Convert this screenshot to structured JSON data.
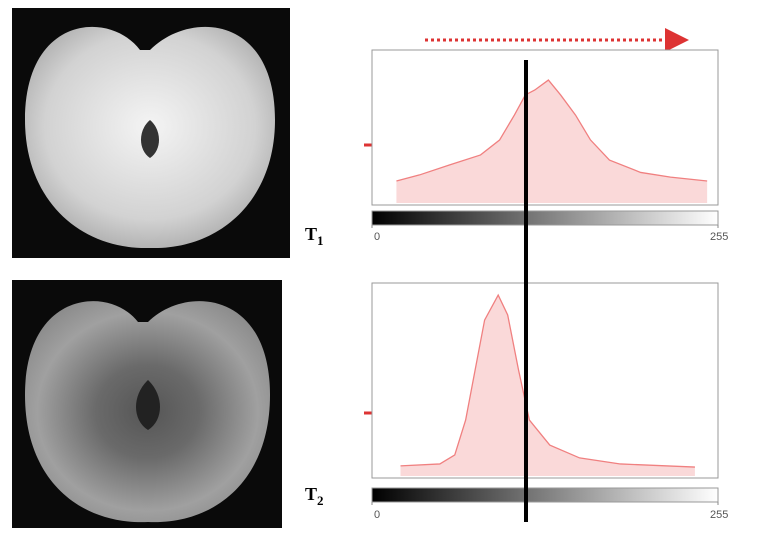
{
  "chart_data": [
    {
      "type": "area",
      "label": {
        "main": "T",
        "sub": "1"
      },
      "color": "#f08080",
      "x": [
        18,
        35,
        57,
        80,
        94,
        105,
        113,
        120,
        130,
        139,
        150,
        161,
        175,
        198,
        220,
        247
      ],
      "values": [
        15.5,
        19.4,
        25.8,
        32.3,
        41.9,
        58.1,
        71,
        74.2,
        80.6,
        71,
        58,
        42,
        29,
        21,
        18,
        15.5
      ],
      "xlim": [
        0,
        255
      ],
      "xticks": [
        0,
        255
      ],
      "ylim": [
        0,
        100
      ]
    },
    {
      "type": "area",
      "label": {
        "main": "T",
        "sub": "2"
      },
      "color": "#f08080",
      "x": [
        21,
        50,
        61,
        69,
        76,
        83,
        93,
        100,
        108,
        116,
        131,
        153,
        183,
        238
      ],
      "values": [
        6.2,
        7.2,
        11.8,
        29.7,
        55.4,
        81,
        93.8,
        83.6,
        55.4,
        29.7,
        16.9,
        10.3,
        7.2,
        5.6
      ],
      "xlim": [
        0,
        255
      ],
      "xticks": [
        0,
        255
      ],
      "ylim": [
        0,
        100
      ]
    }
  ]
}
